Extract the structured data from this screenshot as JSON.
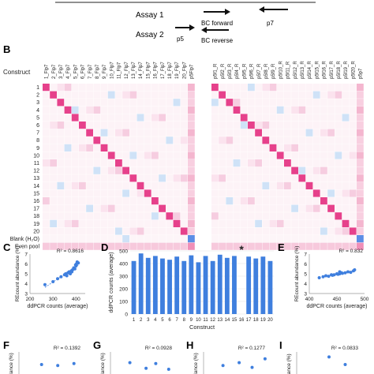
{
  "panel_a": {
    "assay1_label": "Assay 1",
    "assay2_label": "Assay 2",
    "bc_forward": "BC forward",
    "bc_reverse": "BC reverse",
    "p5": "p5",
    "p7": "p7"
  },
  "panel_labels": {
    "b": "B",
    "c": "C",
    "d": "D",
    "e": "E",
    "f": "F",
    "g": "G",
    "h": "H",
    "i": "I"
  },
  "colors": {
    "heat_high": "#e6418b",
    "heat_low_pink": "#f7d3e3",
    "heat_neg_blue": "#cfe2f7",
    "heat_even_blue": "#5b8ee6",
    "bar": "#3f7fde",
    "trend_points": "#3f7fde"
  },
  "chart_data": [
    {
      "type": "heatmap",
      "panel": "B",
      "row_header": "Construct",
      "rows": [
        "1",
        "2",
        "3",
        "4",
        "5",
        "6",
        "7",
        "8",
        "9",
        "10",
        "11",
        "12",
        "13",
        "14",
        "15",
        "16",
        "17",
        "18",
        "19",
        "20",
        "Blank (H2O)",
        "Even pool"
      ],
      "left_columns": [
        "1_Flp7",
        "2_Flp7",
        "3_Flp7",
        "4_Flp7",
        "5_Flp7",
        "6_Flp7",
        "7_Flp7",
        "8_Flp7",
        "9_Flp7",
        "10_Flp7",
        "11_Flp7",
        "12_Flp7",
        "13_Flp7",
        "14_Flp7",
        "15_Flp7",
        "16_Flp7",
        "17_Flp7",
        "18_Flp7",
        "19_Flp7",
        "20_Flp7",
        "p5Flp7"
      ],
      "right_columns": [
        "p5f1_R",
        "p5f2_R",
        "p5f3_R",
        "p5f4_R",
        "p5f5_R",
        "p5f6_R",
        "p5f7_R",
        "p5f8_R",
        "p5f9_R",
        "p5f10_R",
        "p5f11_R",
        "p5f12_R",
        "p5f13_R",
        "p5f14_R",
        "p5f15_R",
        "p5f16_R",
        "p5f17_R",
        "p5f18_R",
        "p5f19_R",
        "p5f20_R",
        "p5p7"
      ],
      "diagonal": "high",
      "last_column": "moderate pink, blue for blank row",
      "even_pool_row": "uniform light pink"
    },
    {
      "type": "scatter",
      "panel": "C",
      "r2_label": "R² = 0.8616",
      "xlabel": "ddPCR counts (average)",
      "ylabel": "REcount abundance (%)",
      "xticks": [
        "200",
        "300",
        "400"
      ],
      "yticks": [
        "3",
        "4",
        "5",
        "6",
        "7"
      ],
      "xlim": [
        200,
        440
      ],
      "ylim": [
        3,
        7
      ],
      "points": [
        [
          265,
          3.9
        ],
        [
          300,
          4.2
        ],
        [
          320,
          4.5
        ],
        [
          335,
          4.7
        ],
        [
          350,
          4.9
        ],
        [
          355,
          5.0
        ],
        [
          360,
          4.8
        ],
        [
          365,
          5.1
        ],
        [
          370,
          5.2
        ],
        [
          375,
          5.0
        ],
        [
          380,
          5.3
        ],
        [
          385,
          5.4
        ],
        [
          390,
          5.6
        ],
        [
          395,
          5.5
        ],
        [
          400,
          5.8
        ],
        [
          402,
          6.0
        ],
        [
          405,
          6.2
        ],
        [
          398,
          5.9
        ],
        [
          382,
          5.2
        ],
        [
          410,
          6.1
        ]
      ]
    },
    {
      "type": "bar",
      "panel": "D",
      "xlabel": "Construct",
      "ylabel": "ddPCR counts (average)",
      "ylim": [
        0,
        500
      ],
      "yticks": [
        "0",
        "100",
        "200",
        "300",
        "400",
        "500"
      ],
      "categories": [
        "1",
        "2",
        "3",
        "4",
        "5",
        "6",
        "7",
        "8",
        "9",
        "10",
        "11",
        "12",
        "13",
        "14",
        "15",
        "16",
        "17",
        "18",
        "19",
        "20"
      ],
      "values": [
        420,
        480,
        445,
        460,
        440,
        430,
        455,
        420,
        465,
        410,
        460,
        420,
        470,
        445,
        460,
        0,
        455,
        440,
        455,
        420
      ],
      "annotation": "*"
    },
    {
      "type": "scatter",
      "panel": "E",
      "r2_label": "R² = 0.832",
      "xlabel": "ddPCR counts (average)",
      "ylabel": "REcount abundance (%)",
      "xticks": [
        "400",
        "450",
        "500"
      ],
      "yticks": [
        "3",
        "4",
        "5",
        "6",
        "7"
      ],
      "xlim": [
        400,
        500
      ],
      "ylim": [
        3,
        7
      ],
      "points": [
        [
          418,
          4.6
        ],
        [
          425,
          4.7
        ],
        [
          430,
          4.8
        ],
        [
          435,
          4.75
        ],
        [
          440,
          4.9
        ],
        [
          442,
          4.85
        ],
        [
          445,
          4.9
        ],
        [
          450,
          5.0
        ],
        [
          452,
          4.95
        ],
        [
          455,
          5.0
        ],
        [
          458,
          5.1
        ],
        [
          460,
          5.05
        ],
        [
          465,
          5.1
        ],
        [
          470,
          5.2
        ],
        [
          475,
          5.15
        ],
        [
          480,
          5.3
        ],
        [
          482,
          5.4
        ],
        [
          455,
          5.2
        ]
      ]
    },
    {
      "type": "scatter",
      "panel": "F",
      "r2_label": "R² = 0.1392",
      "ylabel": "dance (%)",
      "points": [
        [
          0.35,
          0.5
        ],
        [
          0.6,
          0.45
        ],
        [
          0.85,
          0.55
        ]
      ]
    },
    {
      "type": "scatter",
      "panel": "G",
      "r2_label": "R² = 0.0928",
      "ylabel": "dance (%)",
      "points": [
        [
          0.3,
          0.6
        ],
        [
          0.55,
          0.3
        ],
        [
          0.7,
          0.55
        ],
        [
          0.9,
          0.25
        ]
      ]
    },
    {
      "type": "scatter",
      "panel": "H",
      "r2_label": "R² = 0.1277",
      "ylabel": "dance (%)",
      "points": [
        [
          0.3,
          0.45
        ],
        [
          0.55,
          0.6
        ],
        [
          0.75,
          0.35
        ],
        [
          0.95,
          0.8
        ]
      ]
    },
    {
      "type": "scatter",
      "panel": "I",
      "r2_label": "R² = 0.0833",
      "ylabel": "lance (%)",
      "points": [
        [
          0.5,
          0.9
        ],
        [
          0.75,
          0.5
        ]
      ]
    }
  ]
}
